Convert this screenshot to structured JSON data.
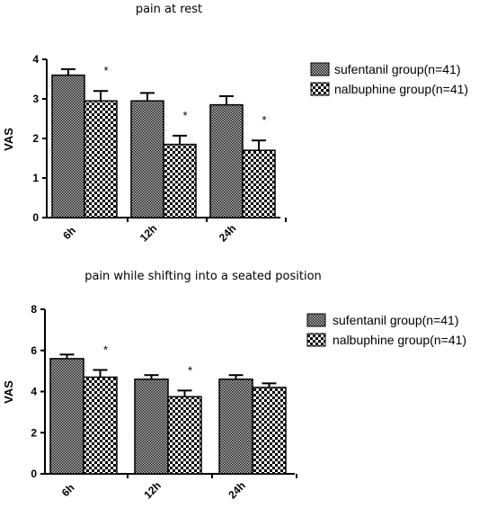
{
  "chart_data": [
    {
      "type": "bar",
      "title": "pain at rest",
      "ylabel": "VAS",
      "xlabel": "",
      "ylim": [
        0,
        4
      ],
      "yticks": [
        0,
        1,
        2,
        3,
        4
      ],
      "categories": [
        "6h",
        "12h",
        "24h"
      ],
      "series": [
        {
          "name": "sufentanil group(n=41)",
          "values": [
            3.6,
            2.95,
            2.85
          ],
          "errors": [
            0.15,
            0.2,
            0.22
          ],
          "pattern": "fine-check"
        },
        {
          "name": "nalbuphine group(n=41)",
          "values": [
            2.95,
            1.85,
            1.7
          ],
          "errors": [
            0.25,
            0.22,
            0.25
          ],
          "pattern": "coarse-check"
        }
      ],
      "annotations": [
        "*",
        "*",
        "*"
      ],
      "legend": "right"
    },
    {
      "type": "bar",
      "title": "pain while shifting into a seated position",
      "ylabel": "VAS",
      "xlabel": "",
      "ylim": [
        0,
        8
      ],
      "yticks": [
        0,
        2,
        4,
        6,
        8
      ],
      "categories": [
        "6h",
        "12h",
        "24h"
      ],
      "series": [
        {
          "name": "sufentanil group(n=41)",
          "values": [
            5.6,
            4.6,
            4.6
          ],
          "errors": [
            0.2,
            0.2,
            0.2
          ],
          "pattern": "fine-check"
        },
        {
          "name": "nalbuphine group(n=41)",
          "values": [
            4.7,
            3.75,
            4.2
          ],
          "errors": [
            0.35,
            0.3,
            0.2
          ],
          "pattern": "coarse-check"
        }
      ],
      "annotations": [
        "*",
        "*",
        ""
      ],
      "legend": "right"
    }
  ]
}
